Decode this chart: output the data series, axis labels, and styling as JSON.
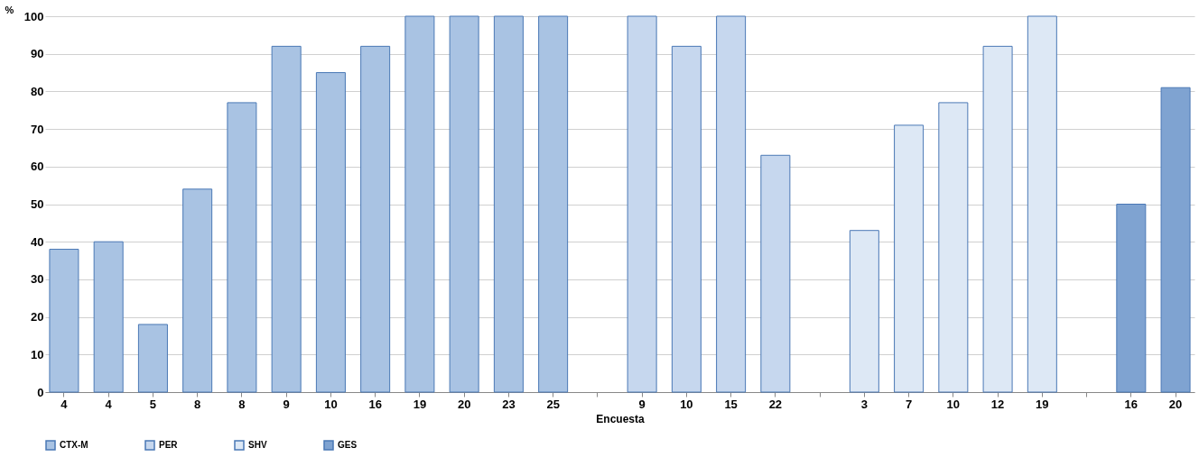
{
  "chart_data": {
    "type": "bar",
    "xlabel": "Encuesta",
    "ylabel": "%",
    "categories": [
      "4",
      "4",
      "5",
      "8",
      "8",
      "9",
      "10",
      "16",
      "19",
      "20",
      "23",
      "25",
      null,
      "9",
      "10",
      "15",
      "22",
      null,
      "3",
      "7",
      "10",
      "12",
      "19",
      null,
      "16",
      "20"
    ],
    "series": [
      {
        "name": "CTX-M",
        "color": "#a9c3e3",
        "values": [
          38,
          40,
          18,
          54,
          77,
          92,
          85,
          92,
          100,
          100,
          100,
          100,
          null,
          null,
          null,
          null,
          null,
          null,
          null,
          null,
          null,
          null,
          null,
          null,
          null,
          null
        ]
      },
      {
        "name": "PER",
        "color": "#c6d7ee",
        "values": [
          null,
          null,
          null,
          null,
          null,
          null,
          null,
          null,
          null,
          null,
          null,
          null,
          null,
          100,
          92,
          100,
          63,
          null,
          null,
          null,
          null,
          null,
          null,
          null,
          null,
          null
        ]
      },
      {
        "name": "SHV",
        "color": "#dde8f5",
        "values": [
          null,
          null,
          null,
          null,
          null,
          null,
          null,
          null,
          null,
          null,
          null,
          null,
          null,
          null,
          null,
          null,
          null,
          null,
          43,
          71,
          77,
          92,
          100,
          null,
          null,
          null
        ]
      },
      {
        "name": "GES",
        "color": "#7fa3d1",
        "values": [
          null,
          null,
          null,
          null,
          null,
          null,
          null,
          null,
          null,
          null,
          null,
          null,
          null,
          null,
          null,
          null,
          null,
          null,
          null,
          null,
          null,
          null,
          null,
          null,
          50,
          81
        ]
      }
    ],
    "ylim": [
      0,
      100
    ],
    "yticks": [
      0,
      10,
      20,
      30,
      40,
      50,
      60,
      70,
      80,
      90,
      100
    ],
    "grid": "y",
    "legend": "bottom"
  }
}
